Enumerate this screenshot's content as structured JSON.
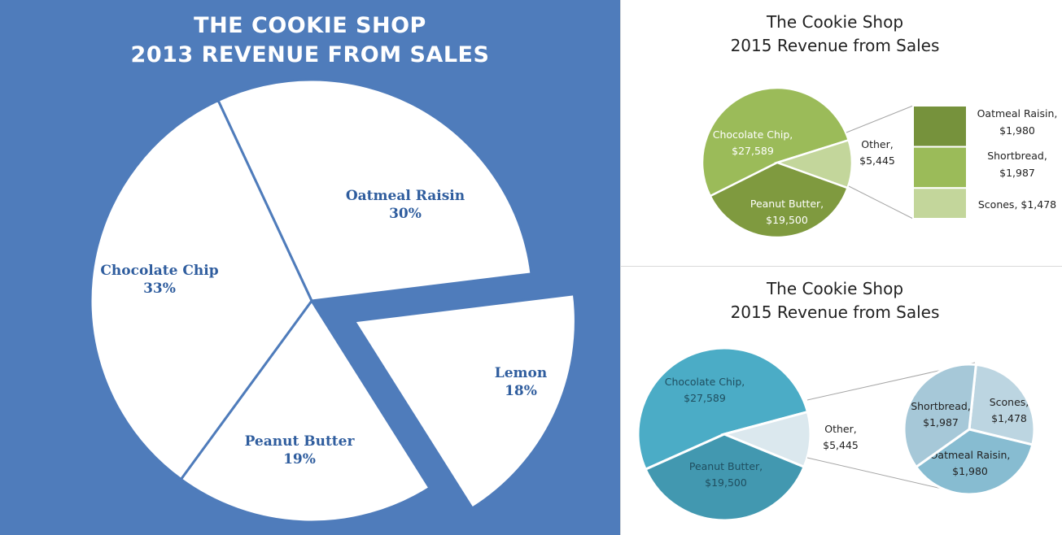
{
  "chart_data": [
    {
      "type": "pie",
      "title": [
        "THE COOKIE SHOP",
        "2013 REVENUE FROM SALES"
      ],
      "slices": [
        {
          "name": "Oatmeal  Raisin",
          "percent": "30%",
          "value": 30
        },
        {
          "name": "Lemon",
          "percent": "18%",
          "value": 18
        },
        {
          "name": "Peanut Butter",
          "percent": "19%",
          "value": 19
        },
        {
          "name": "Chocolate Chip",
          "percent": "33%",
          "value": 33
        }
      ],
      "exploded": "Lemon",
      "colors": {
        "background": "#4f7cbb",
        "slice": "#ffffff",
        "label": "#2f5d9e"
      }
    },
    {
      "type": "pie",
      "subtype": "pie-of-bar",
      "title": [
        "The Cookie Shop",
        "2015 Revenue from Sales"
      ],
      "slices": [
        {
          "name": "Chocolate Chip,",
          "amount": "$27,589",
          "value": 27589,
          "color": "#9bbb59"
        },
        {
          "name": "Other,",
          "amount": "$5,445",
          "value": 5445,
          "color": "#c3d69b"
        },
        {
          "name": "Peanut Butter,",
          "amount": "$19,500",
          "value": 19500,
          "color": "#7f9a3f"
        }
      ],
      "breakdown": [
        {
          "name": "Oatmeal  Raisin,",
          "amount": "$1,980",
          "value": 1980,
          "color": "#76923c"
        },
        {
          "name": "Shortbread,",
          "amount": "$1,987",
          "value": 1987,
          "color": "#9bbb59"
        },
        {
          "name": "Scones, $1,478",
          "value": 1478,
          "color": "#c3d69b"
        }
      ]
    },
    {
      "type": "pie",
      "subtype": "pie-of-pie",
      "title": [
        "The Cookie Shop",
        "2015 Revenue from Sales"
      ],
      "slices": [
        {
          "name": "Chocolate Chip,",
          "amount": "$27,589",
          "value": 27589,
          "color": "#4bacc6"
        },
        {
          "name": "Other,",
          "amount": "$5,445",
          "value": 5445,
          "color": "#dbe8ee"
        },
        {
          "name": "Peanut Butter,",
          "amount": "$19,500",
          "value": 19500,
          "color": "#4298b0"
        }
      ],
      "breakdown": [
        {
          "name": "Scones,",
          "amount": "$1,478",
          "value": 1478,
          "color": "#bcd5e1"
        },
        {
          "name": "Oatmeal  Raisin,",
          "amount": "$1,980",
          "value": 1980,
          "color": "#87bcd1"
        },
        {
          "name": "Shortbread,",
          "amount": "$1,987",
          "value": 1987,
          "color": "#a6c8d8"
        }
      ]
    }
  ]
}
